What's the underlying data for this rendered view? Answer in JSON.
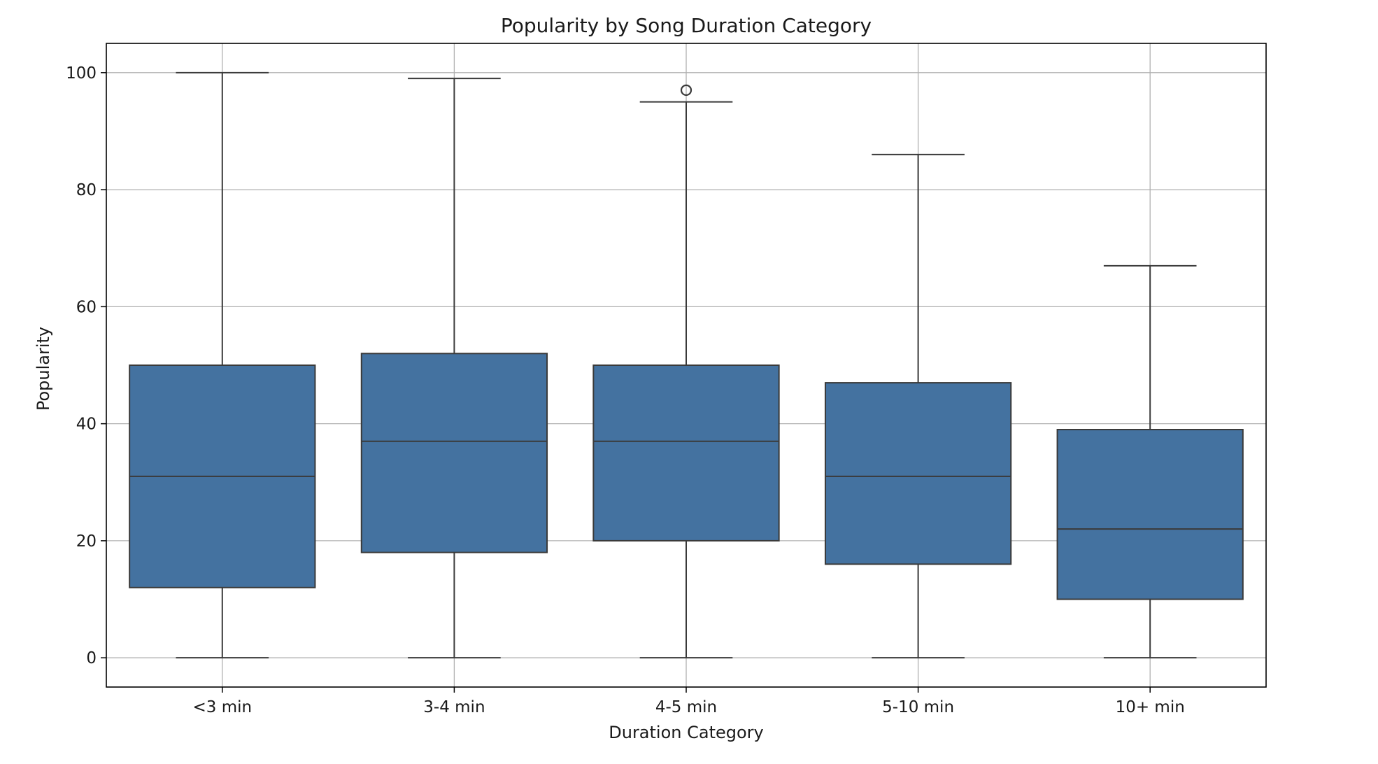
{
  "chart_data": {
    "type": "boxplot",
    "title": "Popularity by Song Duration Category",
    "xlabel": "Duration Category",
    "ylabel": "Popularity",
    "ylim": [
      -5,
      105
    ],
    "yticks": [
      0,
      20,
      40,
      60,
      80,
      100
    ],
    "grid": true,
    "legend": "none",
    "box_color": "#4472a0",
    "line_color": "#3a3a3a",
    "grid_color": "#b0b0b0",
    "categories": [
      "<3 min",
      "3-4 min",
      "4-5 min",
      "5-10 min",
      "10+ min"
    ],
    "boxes": [
      {
        "category": "<3 min",
        "whisker_low": 0,
        "q1": 12,
        "median": 31,
        "q3": 50,
        "whisker_high": 100,
        "outliers": []
      },
      {
        "category": "3-4 min",
        "whisker_low": 0,
        "q1": 18,
        "median": 37,
        "q3": 52,
        "whisker_high": 99,
        "outliers": []
      },
      {
        "category": "4-5 min",
        "whisker_low": 0,
        "q1": 20,
        "median": 37,
        "q3": 50,
        "whisker_high": 95,
        "outliers": [
          97
        ]
      },
      {
        "category": "5-10 min",
        "whisker_low": 0,
        "q1": 16,
        "median": 31,
        "q3": 47,
        "whisker_high": 86,
        "outliers": []
      },
      {
        "category": "10+ min",
        "whisker_low": 0,
        "q1": 10,
        "median": 22,
        "q3": 39,
        "whisker_high": 67,
        "outliers": []
      }
    ]
  }
}
